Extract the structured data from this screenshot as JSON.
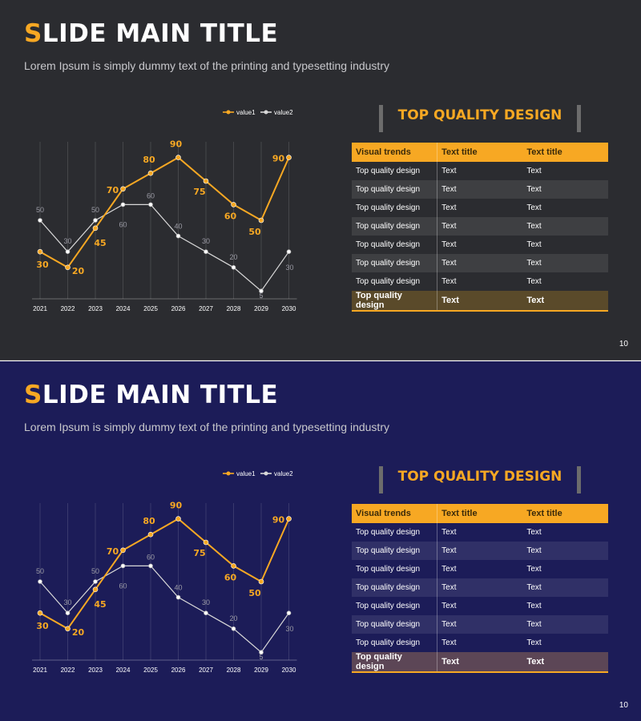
{
  "slide": {
    "title_first": "S",
    "title_rest": "LIDE MAIN TITLE",
    "subtitle": "Lorem Ipsum is simply dummy text of the printing and typesetting industry",
    "page_number": "10",
    "heading": "TOP QUALITY DESIGN"
  },
  "table": {
    "headers": [
      "Visual trends",
      "Text title",
      "Text title"
    ],
    "rows": [
      [
        "Top quality design",
        "Text",
        "Text"
      ],
      [
        "Top quality design",
        "Text",
        "Text"
      ],
      [
        "Top quality design",
        "Text",
        "Text"
      ],
      [
        "Top quality design",
        "Text",
        "Text"
      ],
      [
        "Top quality design",
        "Text",
        "Text"
      ],
      [
        "Top quality design",
        "Text",
        "Text"
      ],
      [
        "Top quality design",
        "Text",
        "Text"
      ]
    ],
    "footer": [
      "Top quality design",
      "Text",
      "Text"
    ]
  },
  "themes": [
    {
      "name": "dark-gray",
      "background": "#2b2c30"
    },
    {
      "name": "navy",
      "background": "#1c1c58"
    }
  ],
  "colors": {
    "accent": "#f7a823",
    "series2": "#d8d8d8",
    "text": "#ffffff"
  },
  "chart_data": {
    "type": "line",
    "categories": [
      "2021",
      "2022",
      "2023",
      "2024",
      "2025",
      "2026",
      "2027",
      "2028",
      "2029",
      "2030"
    ],
    "series": [
      {
        "name": "value1",
        "values": [
          30,
          20,
          45,
          70,
          80,
          90,
          75,
          60,
          50,
          90
        ],
        "color": "#f7a823"
      },
      {
        "name": "value2",
        "values": [
          50,
          30,
          50,
          60,
          60,
          40,
          30,
          20,
          5,
          30
        ],
        "color": "#d8d8d8"
      }
    ],
    "ylim": [
      0,
      100
    ],
    "grid": "vertical",
    "legend": "top-right",
    "title": "",
    "xlabel": "",
    "ylabel": ""
  }
}
